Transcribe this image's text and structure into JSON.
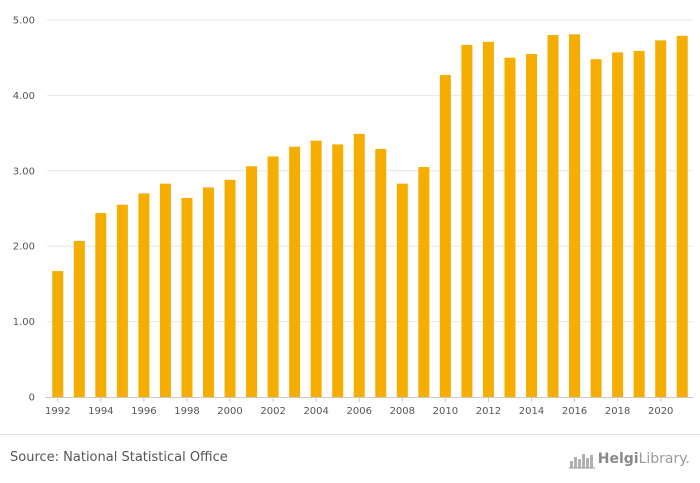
{
  "chart_data": {
    "type": "bar",
    "x": [
      1992,
      1993,
      1994,
      1995,
      1996,
      1997,
      1998,
      1999,
      2000,
      2001,
      2002,
      2003,
      2004,
      2005,
      2006,
      2007,
      2008,
      2009,
      2010,
      2011,
      2012,
      2013,
      2014,
      2015,
      2016,
      2017,
      2018,
      2019,
      2020,
      2021
    ],
    "values": [
      1.67,
      2.07,
      2.44,
      2.55,
      2.7,
      2.83,
      2.64,
      2.78,
      2.88,
      3.06,
      3.19,
      3.32,
      3.4,
      3.35,
      3.49,
      3.29,
      2.83,
      3.05,
      4.27,
      4.67,
      4.71,
      4.5,
      4.55,
      4.8,
      4.81,
      4.48,
      4.57,
      4.59,
      4.73,
      4.79
    ],
    "x_tick_labels": [
      "1992",
      "1994",
      "1996",
      "1998",
      "2000",
      "2002",
      "2004",
      "2006",
      "2008",
      "2010",
      "2012",
      "2014",
      "2016",
      "2018",
      "2020"
    ],
    "y_ticks": [
      0,
      1,
      2,
      3,
      4,
      5
    ],
    "y_tick_labels": [
      "0",
      "1.00",
      "2.00",
      "3.00",
      "4.00",
      "5.00"
    ],
    "ylim": [
      0,
      5
    ],
    "grid": "horizontal",
    "bar_color": "#f5ad00",
    "grid_color": "#e6e6e6",
    "axis_color": "#c9c9c9"
  },
  "footer": {
    "source": "Source: National Statistical Office",
    "logo_text_bold": "Helgi",
    "logo_text": "Library.",
    "logo_icon": "helgilibrary-logo-icon"
  }
}
